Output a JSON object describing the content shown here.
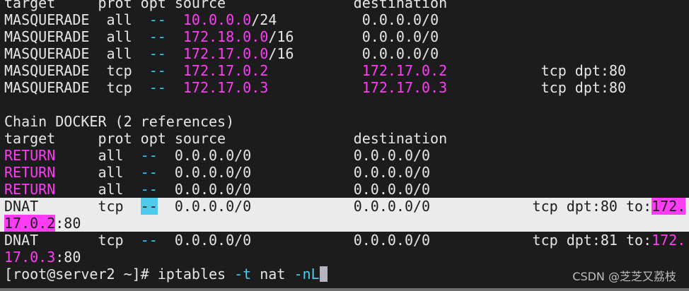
{
  "terminal": {
    "lines": [
      {
        "hl": false,
        "segs": [
          {
            "t": "target     prot opt source               destination",
            "c": "w"
          }
        ]
      },
      {
        "hl": false,
        "segs": [
          {
            "t": "MASQUERADE  all  ",
            "c": "w"
          },
          {
            "t": "--",
            "c": "c"
          },
          {
            "t": "  ",
            "c": "w"
          },
          {
            "t": "10.0.0.0",
            "c": "m"
          },
          {
            "t": "/24          0.0.0.0/0",
            "c": "w"
          }
        ]
      },
      {
        "hl": false,
        "segs": [
          {
            "t": "MASQUERADE  all  ",
            "c": "w"
          },
          {
            "t": "--",
            "c": "c"
          },
          {
            "t": "  ",
            "c": "w"
          },
          {
            "t": "172.18.0.0",
            "c": "m"
          },
          {
            "t": "/16        0.0.0.0/0",
            "c": "w"
          }
        ]
      },
      {
        "hl": false,
        "segs": [
          {
            "t": "MASQUERADE  all  ",
            "c": "w"
          },
          {
            "t": "--",
            "c": "c"
          },
          {
            "t": "  ",
            "c": "w"
          },
          {
            "t": "172.17.0.0",
            "c": "m"
          },
          {
            "t": "/16        0.0.0.0/0",
            "c": "w"
          }
        ]
      },
      {
        "hl": false,
        "segs": [
          {
            "t": "MASQUERADE  tcp  ",
            "c": "w"
          },
          {
            "t": "--",
            "c": "c"
          },
          {
            "t": "  ",
            "c": "w"
          },
          {
            "t": "172.17.0.2",
            "c": "m"
          },
          {
            "t": "           ",
            "c": "w"
          },
          {
            "t": "172.17.0.2",
            "c": "m"
          },
          {
            "t": "           tcp dpt:80",
            "c": "w"
          }
        ]
      },
      {
        "hl": false,
        "segs": [
          {
            "t": "MASQUERADE  tcp  ",
            "c": "w"
          },
          {
            "t": "--",
            "c": "c"
          },
          {
            "t": "  ",
            "c": "w"
          },
          {
            "t": "172.17.0.3",
            "c": "m"
          },
          {
            "t": "           ",
            "c": "w"
          },
          {
            "t": "172.17.0.3",
            "c": "m"
          },
          {
            "t": "           tcp dpt:80",
            "c": "w"
          }
        ]
      },
      {
        "hl": false,
        "segs": [
          {
            "t": "",
            "c": "w"
          }
        ]
      },
      {
        "hl": false,
        "segs": [
          {
            "t": "Chain DOCKER (2 references)",
            "c": "w"
          }
        ]
      },
      {
        "hl": false,
        "segs": [
          {
            "t": "target     prot opt source               destination",
            "c": "w"
          }
        ]
      },
      {
        "hl": false,
        "segs": [
          {
            "t": "RETURN",
            "c": "m"
          },
          {
            "t": "     all  ",
            "c": "w"
          },
          {
            "t": "--",
            "c": "c"
          },
          {
            "t": "  0.0.0.0/0            0.0.0.0/0",
            "c": "w"
          }
        ]
      },
      {
        "hl": false,
        "segs": [
          {
            "t": "RETURN",
            "c": "m"
          },
          {
            "t": "     all  ",
            "c": "w"
          },
          {
            "t": "--",
            "c": "c"
          },
          {
            "t": "  0.0.0.0/0            0.0.0.0/0",
            "c": "w"
          }
        ]
      },
      {
        "hl": false,
        "segs": [
          {
            "t": "RETURN",
            "c": "m"
          },
          {
            "t": "     all  ",
            "c": "w"
          },
          {
            "t": "--",
            "c": "c"
          },
          {
            "t": "  0.0.0.0/0            0.0.0.0/0",
            "c": "w"
          }
        ]
      },
      {
        "hl": true,
        "segs": [
          {
            "t": "DNAT       tcp  ",
            "c": "w"
          },
          {
            "t": "--",
            "c": "cb"
          },
          {
            "t": "  0.0.0.0/0            0.0.0.0/0            tcp dpt:80 to:",
            "c": "w"
          },
          {
            "t": "172.",
            "c": "mb"
          }
        ]
      },
      {
        "hl": true,
        "segs": [
          {
            "t": "17.0.2",
            "c": "mb"
          },
          {
            "t": ":80",
            "c": "w"
          }
        ]
      },
      {
        "hl": false,
        "segs": [
          {
            "t": "DNAT       tcp  ",
            "c": "w"
          },
          {
            "t": "--",
            "c": "c"
          },
          {
            "t": "  0.0.0.0/0            0.0.0.0/0            tcp dpt:81 to:",
            "c": "w"
          },
          {
            "t": "172.",
            "c": "m"
          }
        ]
      },
      {
        "hl": false,
        "segs": [
          {
            "t": "17.0.3",
            "c": "m"
          },
          {
            "t": ":80",
            "c": "w"
          }
        ]
      }
    ],
    "prompt": {
      "ps1": "[root@server2 ~]# ",
      "cmd": "iptables ",
      "flag1": "-t",
      "arg1": " nat ",
      "flag2": "-nL"
    }
  },
  "watermark": "CSDN @芝芝又荔枝",
  "colors": {
    "background": "#1c1c1c",
    "magenta": "#ff3cf5",
    "cyan": "#4fc9ec",
    "selection": "#ebebeb"
  }
}
